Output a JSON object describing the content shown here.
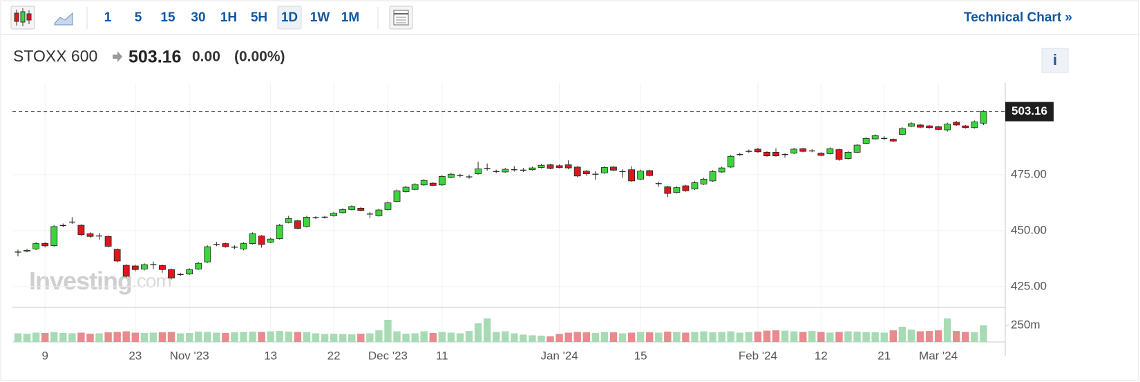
{
  "toolbar": {
    "intervals": [
      "1",
      "5",
      "15",
      "30",
      "1H",
      "5H",
      "1D",
      "1W",
      "1M"
    ],
    "active": "1D",
    "technical_chart": "Technical Chart »"
  },
  "header": {
    "symbol": "STOXX 600",
    "change": "0.00",
    "change_pct": "(0.00%)",
    "info": "i"
  },
  "watermark": {
    "brand": "Investing",
    "suffix": ".com"
  },
  "chart_data": {
    "type": "candlestick",
    "categories": [
      null,
      null,
      null,
      "9",
      null,
      null,
      null,
      null,
      null,
      null,
      null,
      null,
      null,
      "23",
      null,
      null,
      null,
      null,
      null,
      "Nov '23",
      null,
      null,
      null,
      null,
      null,
      null,
      null,
      null,
      "13",
      null,
      null,
      null,
      null,
      null,
      null,
      "22",
      null,
      null,
      null,
      null,
      null,
      "Dec '23",
      null,
      null,
      null,
      null,
      null,
      "11",
      null,
      null,
      null,
      null,
      null,
      null,
      null,
      null,
      null,
      null,
      null,
      null,
      "Jan '24",
      null,
      null,
      null,
      null,
      null,
      null,
      null,
      null,
      "15",
      null,
      null,
      null,
      null,
      null,
      null,
      null,
      null,
      null,
      null,
      null,
      null,
      "Feb '24",
      null,
      null,
      null,
      null,
      null,
      null,
      "12",
      null,
      null,
      null,
      null,
      null,
      null,
      "21",
      null,
      null,
      null,
      null,
      null,
      "Mar '24",
      null,
      null,
      null,
      null,
      null
    ],
    "open": [
      440.4,
      440.8,
      441.8,
      444.3,
      443.3,
      452.3,
      453.8,
      452.4,
      448.6,
      447.6,
      447.4,
      441.6,
      434.5,
      434.2,
      432.8,
      434.8,
      434.4,
      432.6,
      430.4,
      430.6,
      432.8,
      436,
      443.8,
      444.2,
      442.6,
      441.8,
      444.2,
      447.6,
      444.8,
      446.4,
      453.6,
      454.4,
      451.8,
      455.8,
      456,
      456.6,
      458,
      459.4,
      460,
      457.4,
      456.6,
      459.4,
      463,
      467.4,
      468.4,
      470.4,
      471.2,
      470.4,
      473.8,
      474.6,
      474,
      475.4,
      477.8,
      476.4,
      476.2,
      477.2,
      477,
      477.2,
      478.2,
      479.4,
      479,
      479.4,
      478.4,
      476.6,
      475.2,
      475.8,
      478.4,
      476.4,
      477.2,
      473,
      476.8,
      471,
      469.6,
      467,
      470,
      468.6,
      470.8,
      472.2,
      476.2,
      478.4,
      484,
      485.4,
      486.4,
      485,
      485,
      484,
      484.6,
      486.6,
      485.6,
      484.6,
      484.4,
      486.2,
      482.2,
      485,
      489,
      491,
      491.2,
      490.8,
      493,
      496.6,
      497.2,
      496.8,
      496.4,
      495,
      498.4,
      496.8,
      496,
      498
    ],
    "high": [
      441.5,
      441.8,
      444.8,
      444.8,
      452.5,
      453.2,
      456,
      452.8,
      449.2,
      449,
      447.8,
      442,
      435,
      434.8,
      435.4,
      436.2,
      434.8,
      433,
      431.2,
      433.2,
      436,
      443.4,
      445,
      444.6,
      443.4,
      444.8,
      449.2,
      448,
      446.8,
      453,
      456.6,
      454.8,
      456.6,
      456.4,
      456.6,
      458.4,
      460,
      461.4,
      460.6,
      458.4,
      459.8,
      463,
      468.4,
      470,
      471.2,
      473,
      471.6,
      474.8,
      475.8,
      475.4,
      475,
      480.8,
      480,
      477.2,
      478,
      478.8,
      478,
      478.6,
      479.8,
      479.8,
      479.6,
      481.4,
      478.8,
      477,
      476.6,
      478.8,
      478.8,
      477.4,
      478.8,
      477.2,
      477.2,
      471.8,
      470,
      469.8,
      470.4,
      472,
      473.6,
      477,
      478.6,
      483.8,
      484.8,
      486.2,
      487,
      485.4,
      486.8,
      484.6,
      487,
      487,
      486.4,
      485,
      487.2,
      486.6,
      485.6,
      488.8,
      491.8,
      493,
      492.2,
      491.2,
      496.2,
      498.4,
      497.6,
      497.2,
      496.8,
      498.2,
      499,
      497.2,
      499.2,
      503.8
    ],
    "low": [
      438.5,
      440.3,
      441.3,
      442.5,
      442.8,
      451.5,
      453,
      447.6,
      446.8,
      445.8,
      442.5,
      435.8,
      429,
      431.8,
      432.2,
      432.8,
      431.2,
      428.2,
      429.6,
      430.2,
      432.4,
      435.6,
      443,
      442.4,
      441.8,
      441.2,
      443.8,
      442.4,
      444.4,
      446,
      453.2,
      450.6,
      451.4,
      455.2,
      455.4,
      456.2,
      457.6,
      459,
      458.6,
      455.6,
      456.2,
      459,
      462.6,
      467,
      468,
      470,
      469.8,
      470,
      473.4,
      473.8,
      473.2,
      475,
      476.8,
      475.6,
      475.8,
      476.4,
      476.2,
      476.8,
      477.8,
      477.4,
      477.8,
      477.4,
      473.8,
      474.6,
      472.8,
      475.4,
      476.6,
      473.6,
      471.8,
      472.6,
      474.2,
      469.6,
      465,
      466.6,
      467.4,
      468.2,
      470.4,
      471.8,
      475.8,
      478,
      483.4,
      484.8,
      484.8,
      483,
      483,
      482.6,
      484.2,
      485,
      485,
      483.2,
      484,
      481.2,
      481.8,
      484.6,
      488.6,
      490.6,
      490.4,
      489.6,
      492.6,
      496.2,
      495.8,
      495.6,
      494.8,
      494.2,
      496.8,
      495.6,
      495.6,
      497.2
    ],
    "close": [
      440.4,
      441.2,
      444.2,
      443.2,
      451.8,
      452.3,
      453.8,
      448.2,
      447.4,
      447.6,
      443,
      436.4,
      429.6,
      432.6,
      434.8,
      434.8,
      432.6,
      428.8,
      430.4,
      432.6,
      435.4,
      442.8,
      443.8,
      442.8,
      442.6,
      444.2,
      448.6,
      443.8,
      446.2,
      452.4,
      455.4,
      451,
      456,
      455.8,
      456,
      457.8,
      459.4,
      460.8,
      459,
      457.4,
      459.2,
      462.4,
      467.8,
      469.4,
      470.6,
      472.4,
      470.2,
      474.2,
      475.2,
      474.6,
      474,
      477.6,
      477.8,
      476.4,
      477.4,
      477.2,
      477,
      478,
      479.2,
      477.8,
      478.2,
      478,
      474.4,
      475.4,
      475.2,
      478.2,
      477,
      476.4,
      472.2,
      476.6,
      474.6,
      471,
      466.6,
      469.2,
      467.8,
      471.4,
      473,
      476.4,
      478,
      483.2,
      484,
      485.4,
      485.2,
      483.4,
      483.4,
      484,
      486.4,
      485.4,
      485.6,
      483.6,
      486.6,
      481.8,
      485,
      488.2,
      491.2,
      492.4,
      491.2,
      490,
      495.6,
      497.8,
      496.2,
      496,
      495.2,
      497.6,
      497.2,
      496,
      498.6,
      503.16
    ],
    "volume": [
      130,
      125,
      140,
      135,
      150,
      135,
      130,
      140,
      125,
      130,
      145,
      150,
      160,
      140,
      135,
      140,
      145,
      150,
      130,
      135,
      155,
      150,
      140,
      135,
      145,
      150,
      155,
      150,
      160,
      165,
      155,
      150,
      150,
      130,
      120,
      125,
      120,
      115,
      125,
      130,
      175,
      333,
      160,
      125,
      130,
      160,
      135,
      150,
      140,
      130,
      165,
      280,
      354,
      150,
      160,
      130,
      110,
      100,
      95,
      85,
      120,
      140,
      150,
      145,
      135,
      150,
      145,
      130,
      140,
      150,
      145,
      140,
      155,
      150,
      140,
      150,
      160,
      145,
      150,
      160,
      140,
      150,
      155,
      170,
      175,
      170,
      160,
      150,
      165,
      150,
      140,
      150,
      160,
      155,
      150,
      145,
      140,
      175,
      229,
      185,
      160,
      165,
      175,
      354,
      165,
      150,
      145,
      250
    ],
    "colors": {
      "up": "#3ed43e",
      "down": "#e0161c",
      "doji": "#222222",
      "volume_up": "#a8dbb4",
      "volume_down": "#e88b8e"
    },
    "ylim": [
      416,
      516
    ],
    "yticks": [
      {
        "value": 425,
        "label": "425.00"
      },
      {
        "value": 450,
        "label": "450.00"
      },
      {
        "value": 475,
        "label": "475.00"
      }
    ],
    "y2lim": [
      0,
      520
    ],
    "y2ticks": [
      {
        "value": 250,
        "label": "250m"
      }
    ],
    "grid": true
  }
}
